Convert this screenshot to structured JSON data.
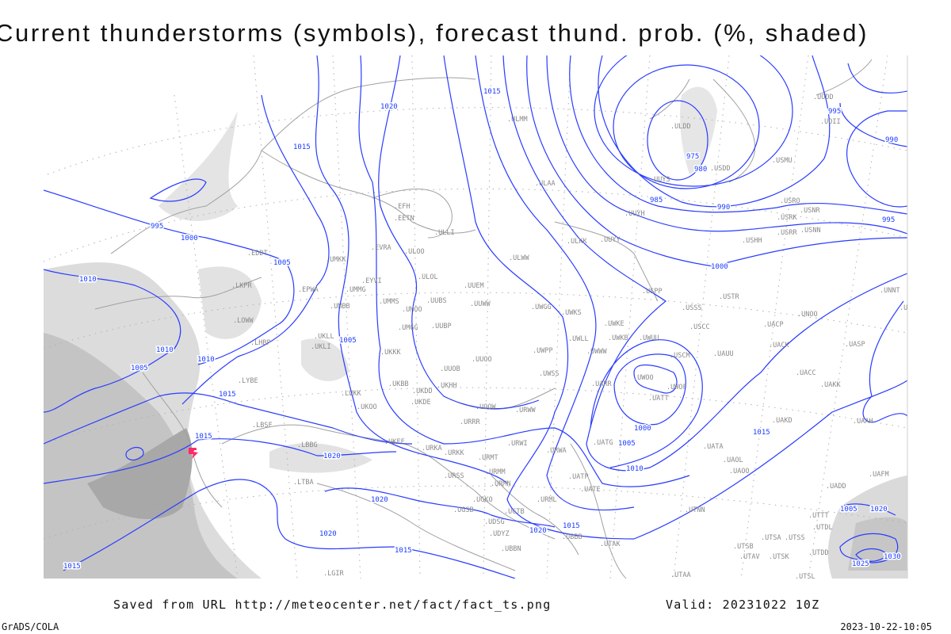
{
  "title": "Current thunderstorms (symbols), forecast thund. prob. (%, shaded)",
  "footer": {
    "saved_from": "Saved from URL http://meteocenter.net/fact/fact_ts.png",
    "valid": "Valid: 20231022 10Z",
    "software": "GrADS/COLA",
    "generated": "2023-10-22-10:05"
  },
  "colors": {
    "isobar": "#2a3cff",
    "station_label": "#8a8a8a",
    "coastline": "#a0a0a0",
    "shading": "#c8c8c8",
    "thunderstorm_symbol": "#ff2a6a"
  },
  "layers": {
    "isobars": "sea-level pressure contours, 5 hPa interval",
    "shading": "thunderstorm probability, grey"
  },
  "thunderstorm_symbols": [
    {
      "icon": "thunderstorm-icon",
      "count": 1
    }
  ],
  "isobar_labels": [
    "1020",
    "1015",
    "1015",
    "995",
    "1000",
    "1005",
    "1010",
    "1005",
    "1010",
    "1005",
    "1010",
    "1015",
    "1015",
    "1020",
    "1020",
    "1020",
    "1015",
    "1020",
    "1015",
    "975",
    "980",
    "985",
    "990",
    "995",
    "990",
    "995",
    "1000",
    "1000",
    "1005",
    "1010",
    "1015",
    "1005",
    "1020",
    "1030",
    "1025",
    "1015"
  ],
  "stations": [
    "EFH",
    "EETN",
    "ULLI",
    "EDDT",
    "UMKK",
    "EVRA",
    "ULOO",
    "ULOL",
    "EPWA",
    "EYVI",
    "UMMG",
    "UUEM",
    "UMMS",
    "UMOO",
    "UUBS",
    "UUWW",
    "UMBB",
    "UWGG",
    "UWKS",
    "UWKE",
    "UWKB",
    "UWUU",
    "ULWW",
    "ULKK",
    "UUYY",
    "ULAA",
    "ULMM",
    "USSS",
    "USTR",
    "USCC",
    "USPP",
    "UWLL",
    "UWWW",
    "UWPP",
    "UMGG",
    "UUBP",
    "UKKK",
    "UUOO",
    "UUOB",
    "UKLL",
    "UKLI",
    "LHBP",
    "LKPR",
    "LOWW",
    "USCM",
    "UAUU",
    "UACK",
    "UACP",
    "UNOO",
    "UASP",
    "UNNT",
    "UNBB",
    "UACC",
    "UAKK",
    "UWOO",
    "UWOF",
    "UATT",
    "UARR",
    "UWSS",
    "UKHH",
    "UKDD",
    "UKBB",
    "UKDE",
    "UKOO",
    "LUKK",
    "LYBE",
    "LBSF",
    "LBBG",
    "UKFF",
    "URKA",
    "URKK",
    "URMT",
    "URWI",
    "URWA",
    "UATG",
    "URSS",
    "URMM",
    "URMN",
    "UATP",
    "UATE",
    "URML",
    "UGKO",
    "UGSB",
    "UGTB",
    "UDSG",
    "UDYZ",
    "UBBB",
    "UTAK",
    "UBBN",
    "LGIR",
    "LTBA",
    "USRR",
    "USNN",
    "USRK",
    "USNR",
    "USRO",
    "USHH",
    "USMU",
    "USDD",
    "ULDD",
    "UUYS",
    "UUYH",
    "UODD",
    "UOII",
    "UAOL",
    "UATA",
    "UAOO",
    "UAKD",
    "UAAH",
    "UADD",
    "UAFM",
    "UTTT",
    "UTDL",
    "UTSA",
    "UTSS",
    "UTDD",
    "UTSB",
    "UTAV",
    "UTSK",
    "UTSL",
    "UTNN",
    "UTAA",
    "URRR",
    "UOOW",
    "URWW"
  ]
}
